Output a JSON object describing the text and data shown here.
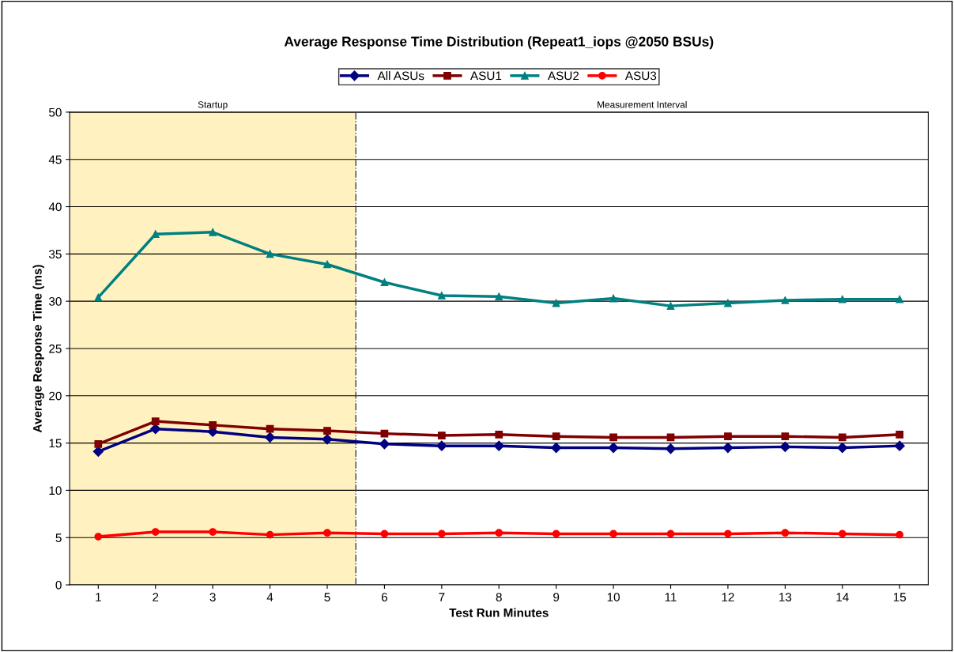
{
  "chart_data": {
    "type": "line",
    "title": "Average Response Time Distribution (Repeat1_iops @2050 BSUs)",
    "xlabel": "Test Run Minutes",
    "ylabel": "Average Response Time (ms)",
    "x": [
      1,
      2,
      3,
      4,
      5,
      6,
      7,
      8,
      9,
      10,
      11,
      12,
      13,
      14,
      15
    ],
    "series": [
      {
        "name": "All ASUs",
        "color": "#000080",
        "marker": "diamond",
        "values": [
          14.1,
          16.5,
          16.2,
          15.6,
          15.4,
          14.9,
          14.7,
          14.7,
          14.5,
          14.5,
          14.4,
          14.5,
          14.6,
          14.5,
          14.7
        ]
      },
      {
        "name": "ASU1",
        "color": "#800000",
        "marker": "square",
        "values": [
          14.9,
          17.3,
          16.9,
          16.5,
          16.3,
          16.0,
          15.8,
          15.9,
          15.7,
          15.6,
          15.6,
          15.7,
          15.7,
          15.6,
          15.9
        ]
      },
      {
        "name": "ASU2",
        "color": "#008080",
        "marker": "triangle",
        "values": [
          30.4,
          37.1,
          37.3,
          35.0,
          33.9,
          32.0,
          30.6,
          30.5,
          29.8,
          30.3,
          29.5,
          29.8,
          30.1,
          30.2,
          30.2
        ]
      },
      {
        "name": "ASU3",
        "color": "#ff0000",
        "marker": "circle",
        "values": [
          5.1,
          5.6,
          5.6,
          5.3,
          5.5,
          5.4,
          5.4,
          5.5,
          5.4,
          5.4,
          5.4,
          5.4,
          5.5,
          5.4,
          5.3
        ]
      }
    ],
    "xlim": [
      0.5,
      15.5
    ],
    "xticks": [
      1,
      2,
      3,
      4,
      5,
      6,
      7,
      8,
      9,
      10,
      11,
      12,
      13,
      14,
      15
    ],
    "ylim": [
      0,
      50
    ],
    "yticks": [
      0,
      5,
      10,
      15,
      20,
      25,
      30,
      35,
      40,
      45,
      50
    ],
    "bands": [
      {
        "axis": "x",
        "from": 0.5,
        "to": 5.5,
        "label": "Startup",
        "color": "#fff2c0"
      },
      {
        "axis": "x",
        "from": 5.5,
        "to": 15.5,
        "label": "Measurement Interval",
        "color": "#ffffff"
      }
    ],
    "ref_lines": [
      {
        "axis": "x",
        "value": 5.5,
        "line_style": "dashdot",
        "color": "#404040"
      }
    ],
    "grid": "y",
    "legend": "top",
    "line_style": "solid"
  }
}
